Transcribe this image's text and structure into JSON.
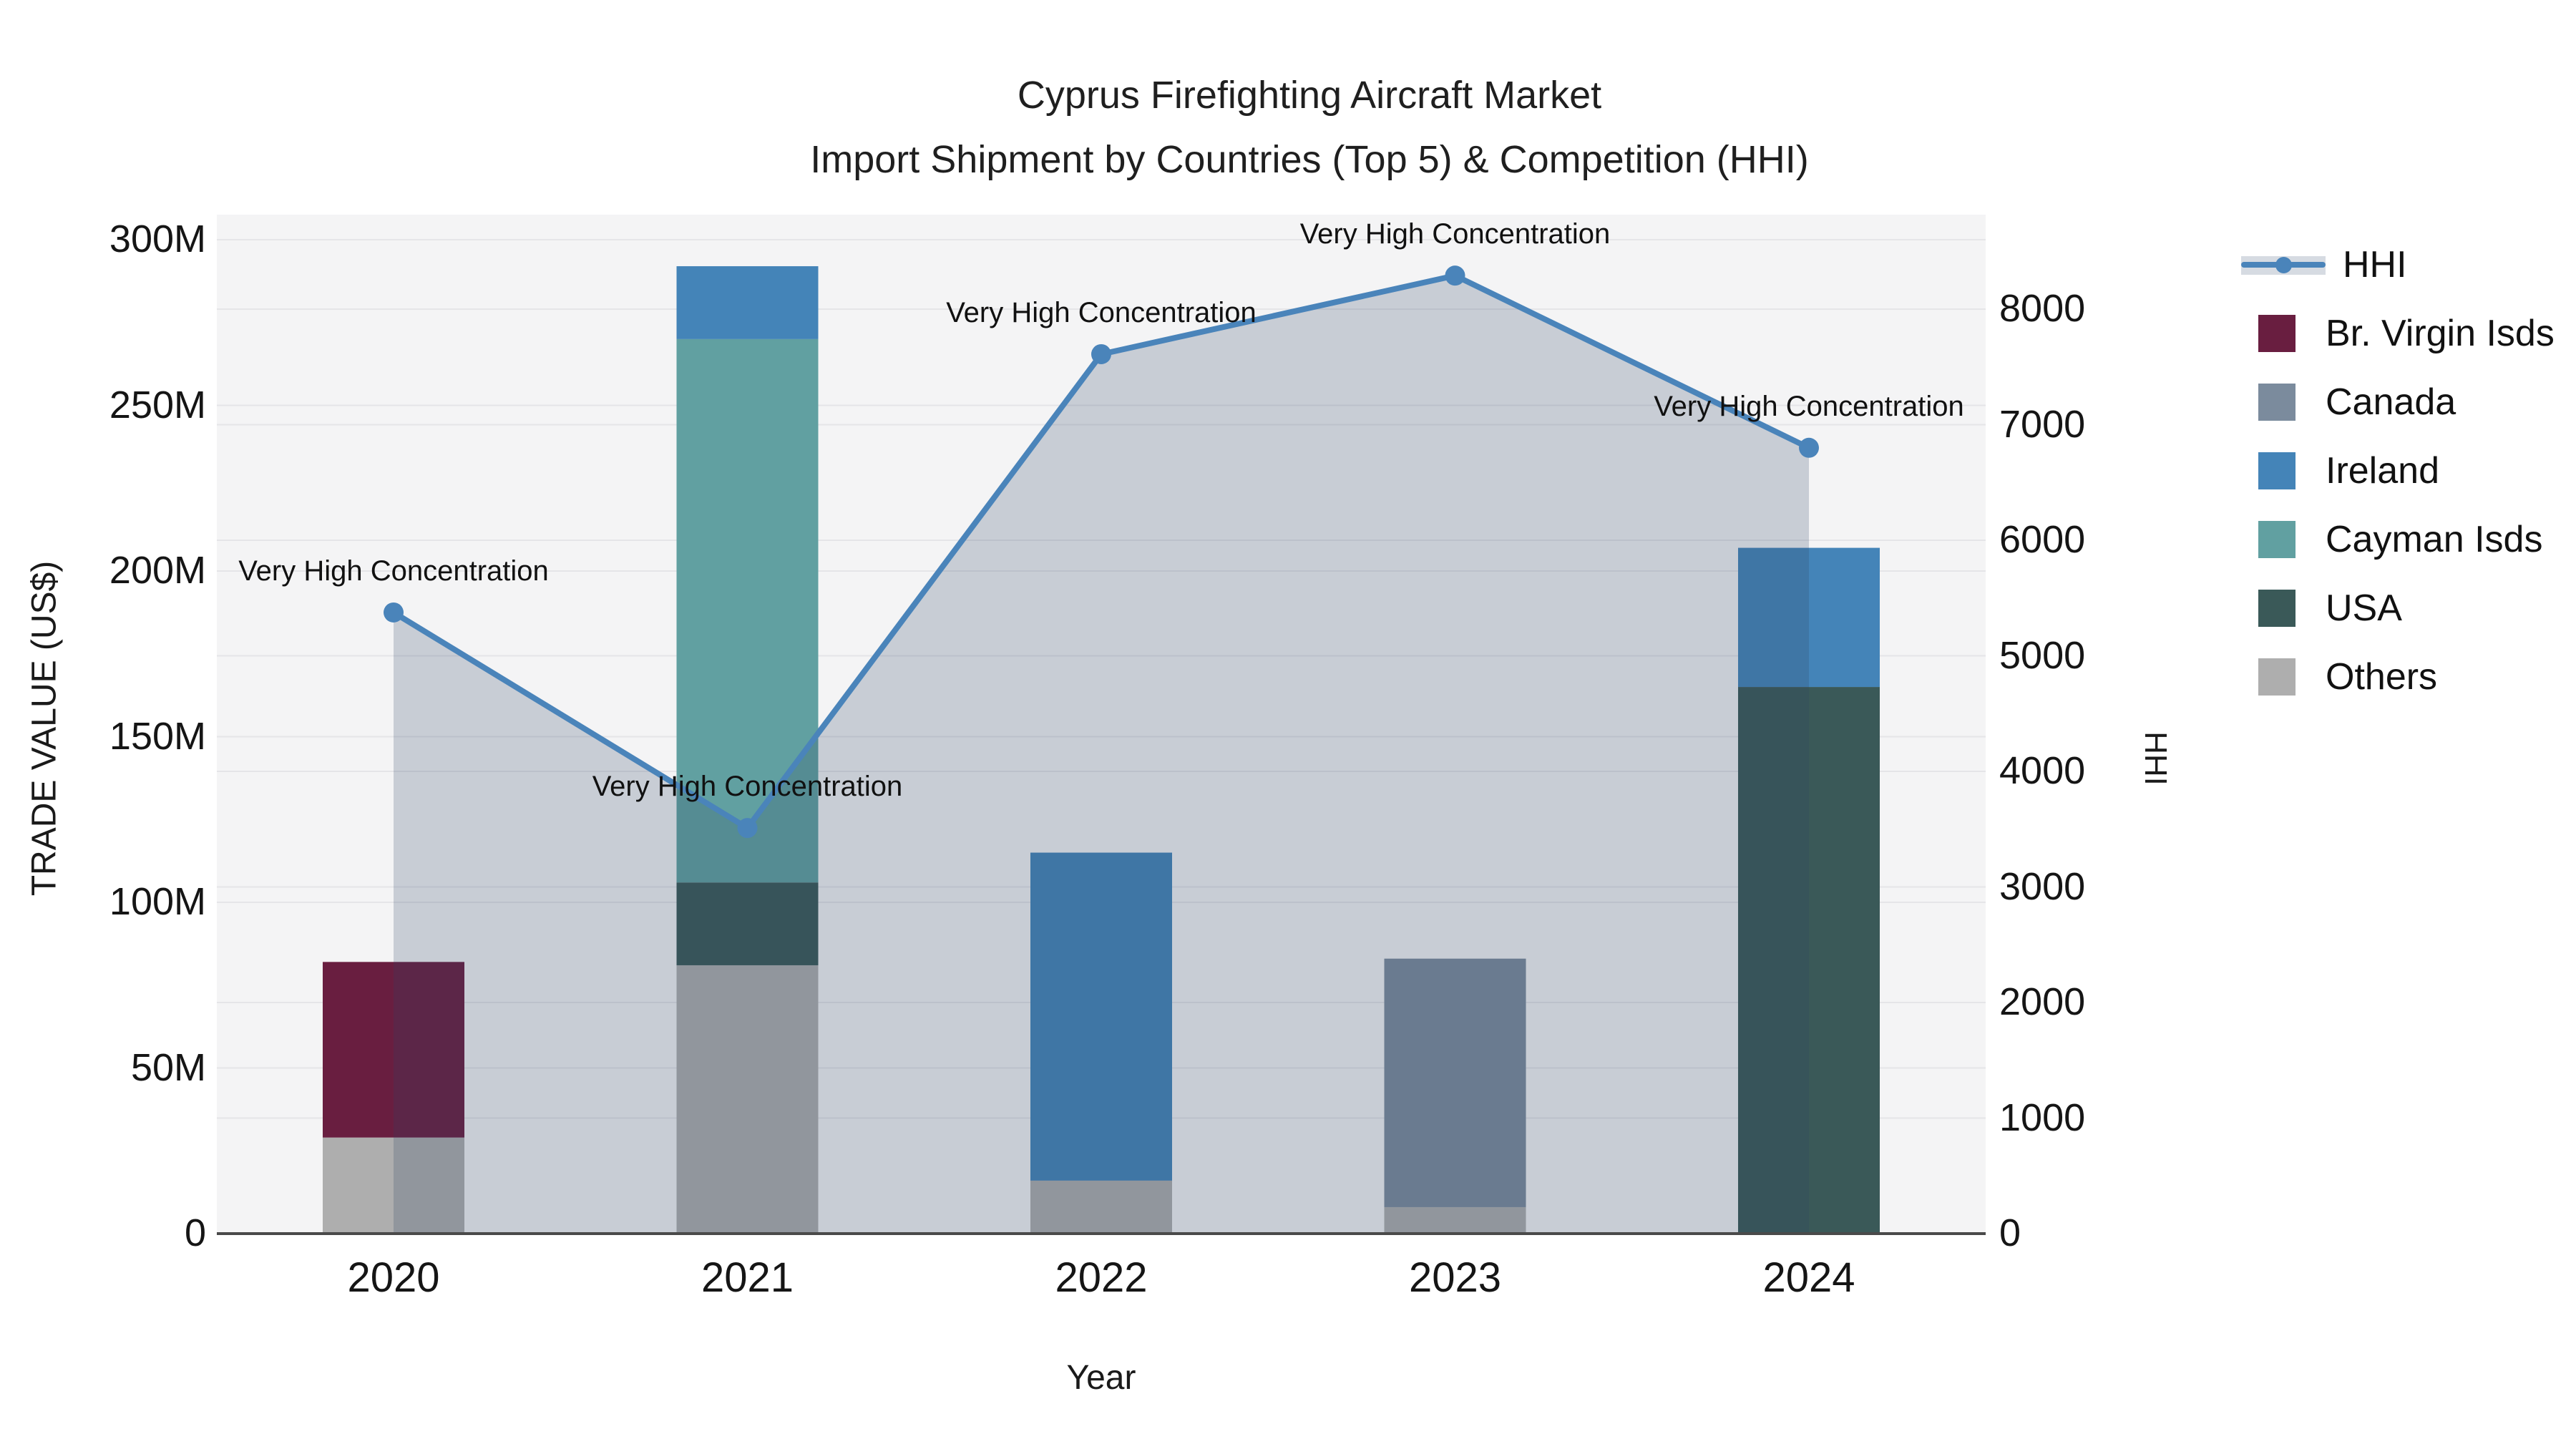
{
  "title": {
    "line1": "Cyprus Firefighting Aircraft Market",
    "line2": "Import Shipment by Countries (Top 5) & Competition (HHI)"
  },
  "axes": {
    "left": {
      "title": "TRADE VALUE (US$)",
      "tick_labels": [
        "0",
        "50M",
        "100M",
        "150M",
        "200M",
        "250M",
        "300M"
      ],
      "tick_values": [
        0,
        50,
        100,
        150,
        200,
        250,
        300
      ]
    },
    "right": {
      "title": "HHI",
      "tick_labels": [
        "0",
        "1000",
        "2000",
        "3000",
        "4000",
        "5000",
        "6000",
        "7000",
        "8000"
      ],
      "tick_values": [
        0,
        1000,
        2000,
        3000,
        4000,
        5000,
        6000,
        7000,
        8000
      ]
    },
    "x": {
      "title": "Year"
    }
  },
  "legend": {
    "items": [
      {
        "label": "HHI",
        "type": "line",
        "color": "#4a84ba"
      },
      {
        "label": "Br. Virgin Isds",
        "type": "square",
        "color": "#691e40"
      },
      {
        "label": "Canada",
        "type": "square",
        "color": "#7b8b9d"
      },
      {
        "label": "Ireland",
        "type": "square",
        "color": "#4484b8"
      },
      {
        "label": "Cayman Isds",
        "type": "square",
        "color": "#61a0a1"
      },
      {
        "label": "USA",
        "type": "square",
        "color": "#3a5958"
      },
      {
        "label": "Others",
        "type": "square",
        "color": "#aeaeae"
      }
    ]
  },
  "chart_data": {
    "type": "combo-stacked-bar-and-line",
    "title": "Cyprus Firefighting Aircraft Market — Import Shipment by Countries (Top 5) & Competition (HHI)",
    "xlabel": "Year",
    "ylabel_left": "TRADE VALUE (US$)",
    "ylabel_right": "HHI",
    "ylim_left_millions": [
      0,
      300
    ],
    "ylim_right": [
      0,
      8000
    ],
    "grid": true,
    "legend_position": "right",
    "categories": [
      "2020",
      "2021",
      "2022",
      "2023",
      "2024"
    ],
    "bars_unit": "million US$",
    "bars": [
      {
        "year": "2020",
        "segments": [
          {
            "name": "Others",
            "value": 29
          },
          {
            "name": "Br. Virgin Isds",
            "value": 53
          }
        ],
        "total": 82
      },
      {
        "year": "2021",
        "segments": [
          {
            "name": "Others",
            "value": 81
          },
          {
            "name": "USA",
            "value": 25
          },
          {
            "name": "Cayman Isds",
            "value": 164
          },
          {
            "name": "Ireland",
            "value": 22
          }
        ],
        "total": 292
      },
      {
        "year": "2022",
        "segments": [
          {
            "name": "Others",
            "value": 16
          },
          {
            "name": "Ireland",
            "value": 99
          }
        ],
        "total": 115
      },
      {
        "year": "2023",
        "segments": [
          {
            "name": "Others",
            "value": 8
          },
          {
            "name": "Canada",
            "value": 75
          }
        ],
        "total": 83
      },
      {
        "year": "2024",
        "segments": [
          {
            "name": "USA",
            "value": 165
          },
          {
            "name": "Ireland",
            "value": 42
          }
        ],
        "total": 207
      }
    ],
    "line": {
      "name": "HHI",
      "axis": "right",
      "values": [
        5375,
        3510,
        7610,
        8290,
        6800
      ],
      "color": "#4a84ba",
      "area_fill": "rgba(45,70,100,0.22)"
    },
    "annotations": [
      {
        "text": "Very High Concentration",
        "year": "2020"
      },
      {
        "text": "Very High Concentration",
        "year": "2021"
      },
      {
        "text": "Very High Concentration",
        "year": "2022"
      },
      {
        "text": "Very High Concentration",
        "year": "2023"
      },
      {
        "text": "Very High Concentration",
        "year": "2024"
      }
    ],
    "colors": {
      "Br. Virgin Isds": "#691e40",
      "Canada": "#7b8b9d",
      "Ireland": "#4484b8",
      "Cayman Isds": "#61a0a1",
      "USA": "#3a5958",
      "Others": "#aeaeae",
      "HHI": "#4a84ba",
      "plot_background": "#f4f4f5",
      "gridline": "#e5e5e8",
      "axis_line": "#4a4a4a"
    }
  }
}
